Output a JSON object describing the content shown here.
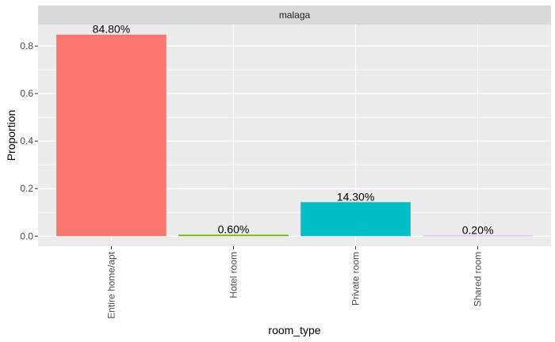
{
  "chart_data": {
    "type": "bar",
    "facet": "malaga",
    "categories": [
      "Entire home/apt",
      "Hotel room",
      "Private room",
      "Shared room"
    ],
    "values": [
      0.848,
      0.006,
      0.143,
      0.002
    ],
    "data_labels": [
      "84.80%",
      "0.60%",
      "14.30%",
      "0.20%"
    ],
    "colors": [
      "#F8766D",
      "#7CAE00",
      "#00BFC4",
      "#C77CFF"
    ],
    "xlabel": "room_type",
    "ylabel": "Proportion",
    "ylim": [
      -0.0424,
      0.8904
    ],
    "yticks": [
      0.0,
      0.2,
      0.4,
      0.6,
      0.8
    ],
    "ytick_labels": [
      "0.0",
      "0.2",
      "0.4",
      "0.6",
      "0.8"
    ],
    "grid": true,
    "legend": "none",
    "panel_background": "#EBEBEB",
    "strip_background": "#D9D9D9",
    "grid_color": "#FFFFFF"
  }
}
